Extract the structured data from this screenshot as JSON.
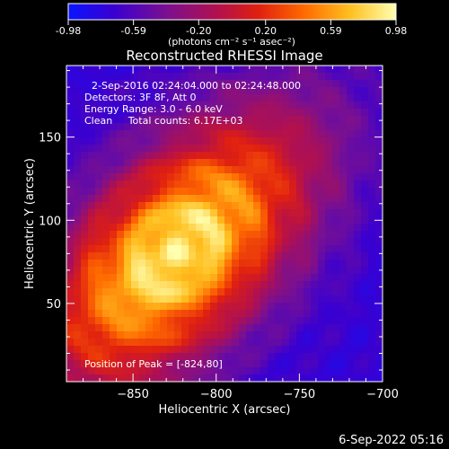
{
  "chart_data": {
    "type": "heatmap",
    "title": "Reconstructed RHESSI Image",
    "xlabel": "Heliocentric X (arcsec)",
    "ylabel": "Heliocentric Y (arcsec)",
    "xlim": [
      -890,
      -700
    ],
    "ylim": [
      3,
      193
    ],
    "x_ticks": [
      -850,
      -800,
      -750,
      -700
    ],
    "y_ticks": [
      50,
      100,
      150
    ],
    "colorbar": {
      "range": [
        -0.98,
        0.98
      ],
      "ticks": [
        "-0.98",
        "-0.59",
        "-0.20",
        "0.20",
        "0.59",
        "0.98"
      ],
      "unit": "(photons cm⁻² s⁻¹ asec⁻²)",
      "stops": [
        "#0a14ff",
        "#3a00d0",
        "#7a1090",
        "#b01050",
        "#e02010",
        "#ff6a00",
        "#ffc020",
        "#ffffb0"
      ]
    },
    "annotations": [
      "2-Sep-2016 02:24:04.000 to 02:24:48.000",
      "Detectors: 3F 8F, Att 0",
      "Energy Range: 3.0 - 6.0 keV",
      "Clean     Total counts: 6.17E+03"
    ],
    "peak_label": "Position of Peak = [-824,80]",
    "peak": [
      -824,
      80
    ],
    "grid": false
  },
  "footer": {
    "timestamp": "6-Sep-2022 05:16"
  }
}
